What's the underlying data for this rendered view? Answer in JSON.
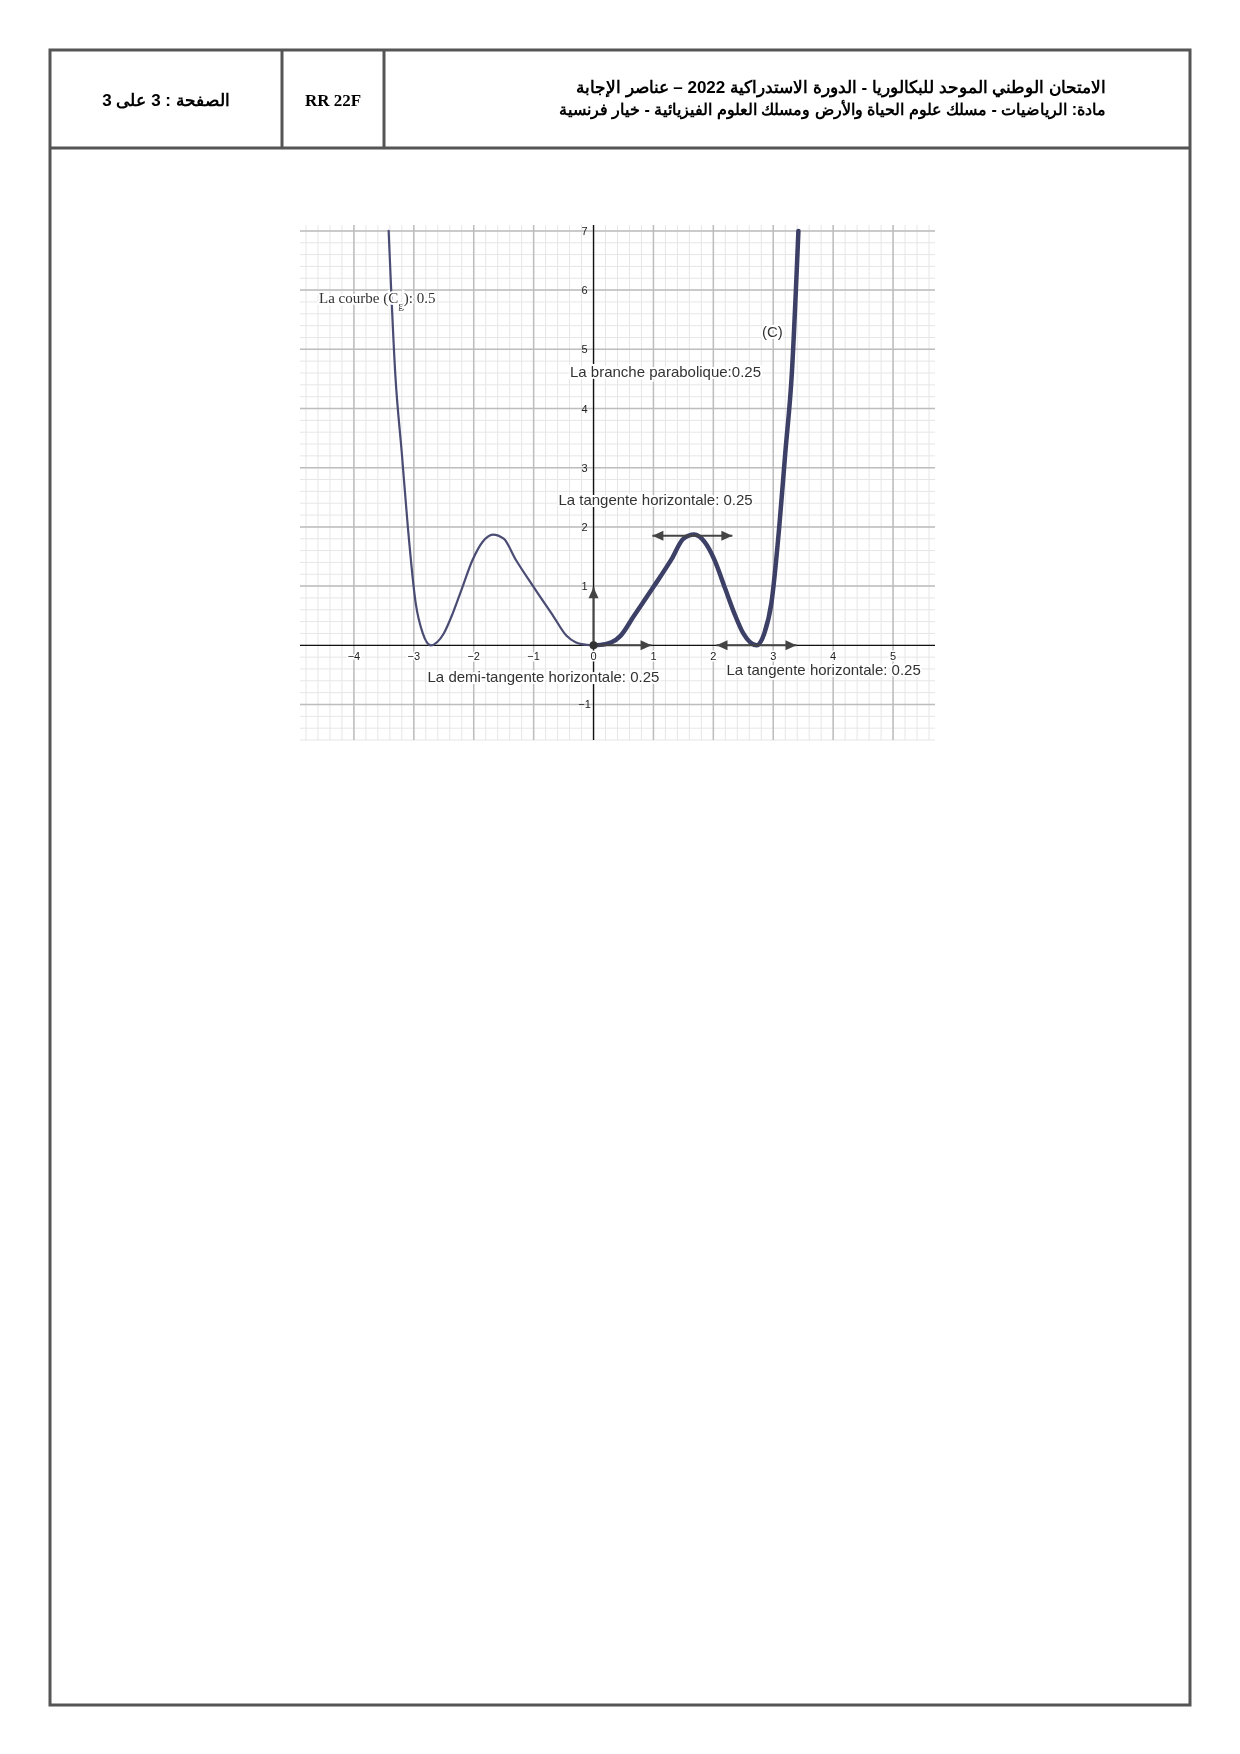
{
  "chart_data": {
    "type": "line",
    "title": "الامتحان الوطني الموحد للبكالوريا  - الدورة الاستدراكية 2022 – عناصر الإجابة",
    "subtitle": "مادة: الرياضيات - مسلك علوم الحياة  والأرض ومسلك العلوم الفيزيائية - خيار فرنسية",
    "annotations": [
      "RR 22F",
      "الصفحة : 3 على 3",
      "La courbe (C$_{g}$): 0.5",
      "(C)",
      "La branche parabolique:0.25",
      {
        "text": "La tangente horizontale: 0.25",
        "x": 1.65,
        "y": 1.85
      },
      {
        "text": "La demi-tangente horizontale: 0.25",
        "x": 0,
        "y": 0
      },
      {
        "text": "La tangente horizontale: 0.25",
        "x": 2.72,
        "y": 0
      }
    ],
    "series": [
      {
        "color": "#4a4c74",
        "x": [
          -3.42,
          -3.31,
          -3.2,
          -3.1,
          -2.97,
          -2.85,
          -2.72,
          -2.5,
          -2.35,
          -2.2,
          -2.02,
          -1.85,
          -1.68,
          -1.5,
          -1.3,
          -1.01,
          -0.67,
          -0.45,
          -0.3,
          -0.2,
          0
        ],
        "values": [
          7.0,
          4.59,
          3.24,
          2.0,
          0.72,
          0.2,
          0,
          0.2,
          0.54,
          0.95,
          1.44,
          1.75,
          1.87,
          1.8,
          1.45,
          1.0,
          0.49,
          0.16,
          0.05,
          0.02,
          0
        ]
      },
      {
        "color": "#3c3f66",
        "x": [
          0,
          0.2,
          0.3,
          0.45,
          0.67,
          1.01,
          1.3,
          1.5,
          1.68,
          1.85,
          2.02,
          2.2,
          2.35,
          2.5,
          2.72,
          2.85,
          2.97,
          3.1,
          3.2,
          3.31,
          3.42
        ],
        "values": [
          0,
          0.02,
          0.05,
          0.16,
          0.49,
          1.0,
          1.45,
          1.8,
          1.87,
          1.75,
          1.44,
          0.95,
          0.54,
          0.2,
          0,
          0.2,
          0.72,
          2.0,
          3.24,
          4.59,
          7.0
        ]
      }
    ],
    "xlim": [
      -4.9,
      5.7
    ],
    "ylim": [
      -1.6,
      7.1
    ],
    "xticks": [
      {
        "value": -4,
        "label": "−4"
      },
      {
        "value": -3,
        "label": "−3"
      },
      {
        "value": -2,
        "label": "−2"
      },
      {
        "value": -1,
        "label": "−1"
      },
      0,
      1,
      2,
      3,
      4,
      5
    ],
    "yticks": [
      {
        "value": -1,
        "label": "−1"
      },
      1,
      2,
      3,
      4,
      5,
      6,
      7
    ],
    "grid": true
  }
}
